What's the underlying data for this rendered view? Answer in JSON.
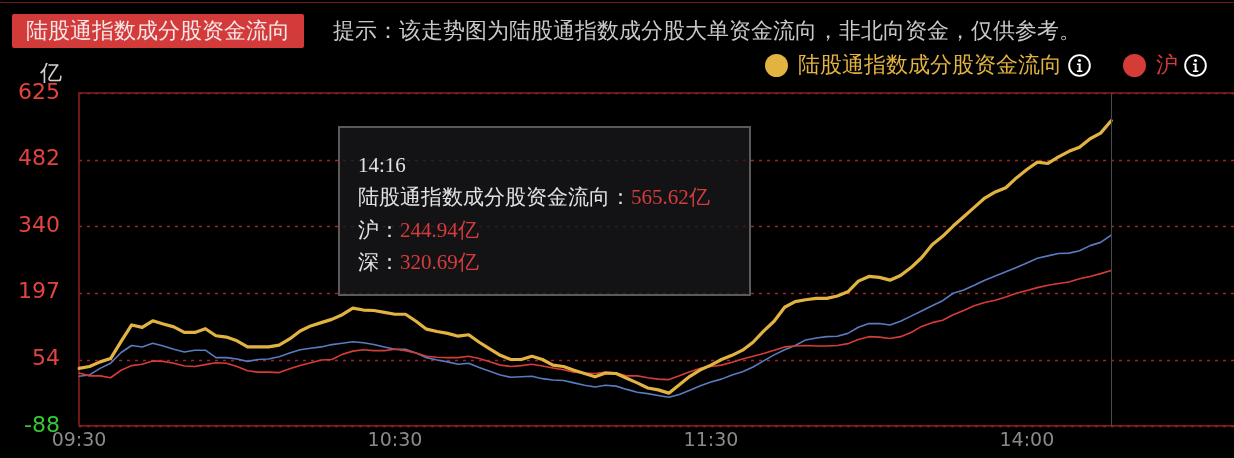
{
  "chart_data": {
    "type": "line",
    "title": "陆股通指数成分股资金流向",
    "subtitle": "提示：该走势图为陆股通指数成分股大单资金流向，非北向资金，仅供参考。",
    "ylabel": "亿",
    "categories": [
      "09:30",
      null,
      null,
      null,
      null,
      null,
      null,
      null,
      null,
      null,
      null,
      null,
      null,
      null,
      null,
      null,
      null,
      null,
      null,
      null,
      null,
      null,
      null,
      null,
      null,
      null,
      null,
      null,
      null,
      null,
      "10:30",
      null,
      null,
      null,
      null,
      null,
      null,
      null,
      null,
      null,
      null,
      null,
      null,
      null,
      null,
      null,
      null,
      null,
      null,
      null,
      null,
      null,
      null,
      null,
      null,
      null,
      null,
      null,
      null,
      null,
      "11:30",
      null,
      null,
      null,
      null,
      null,
      null,
      null,
      null,
      null,
      null,
      null,
      null,
      null,
      null,
      null,
      null,
      null,
      null,
      null,
      null,
      null,
      null,
      null,
      null,
      null,
      null,
      null,
      null,
      null,
      "14:00",
      null,
      null,
      null,
      null,
      null,
      null,
      null,
      null,
      null,
      null,
      null,
      null,
      null,
      null,
      null,
      null,
      null,
      null,
      null
    ],
    "ylim": [
      -88,
      625
    ],
    "yticks": [
      -88,
      54,
      197,
      340,
      482,
      625
    ],
    "grid": "y",
    "legend": "top right",
    "annotations": [
      "14:16",
      "陆股通指数成分股资金流向：",
      "565.62亿",
      "沪：",
      "244.94亿",
      "深：",
      "320.69亿"
    ],
    "series": [
      {
        "name": "陆股通指数成分股资金流向",
        "color": "#e3b341",
        "values": [
          35,
          39,
          49,
          56,
          93,
          128,
          123,
          137,
          130,
          124,
          112,
          112,
          120,
          105,
          102,
          94,
          81,
          81,
          81,
          85,
          98,
          115,
          126,
          133,
          140,
          150,
          164,
          160,
          159,
          155,
          151,
          151,
          136,
          119,
          114,
          110,
          104,
          107,
          91,
          77,
          63,
          54,
          54,
          61,
          54,
          42,
          39,
          31,
          24,
          17,
          25,
          24,
          14,
          4,
          -7,
          -11,
          -18,
          0,
          18,
          32,
          42,
          54,
          63,
          74,
          91,
          115,
          136,
          166,
          178,
          182,
          185,
          185,
          190,
          199,
          222,
          232,
          230,
          224,
          234,
          251,
          272,
          300,
          318,
          340,
          360,
          380,
          400,
          413,
          422,
          443,
          461,
          477,
          474,
          488,
          500,
          509,
          527,
          539,
          565.62,
          null,
          null,
          null,
          null,
          null,
          null,
          null,
          null,
          null,
          null,
          null
        ]
      },
      {
        "name": "沪",
        "color": "#d63c37",
        "values": [
          25,
          19,
          19,
          15,
          31,
          41,
          44,
          51,
          50,
          46,
          40,
          39,
          43,
          47,
          46,
          39,
          30,
          27,
          27,
          26,
          34,
          41,
          47,
          53,
          54,
          65,
          72,
          75,
          73,
          73,
          76,
          73,
          68,
          61,
          59,
          58,
          58,
          61,
          56,
          49,
          42,
          39,
          41,
          44,
          40,
          36,
          32,
          27,
          25,
          24,
          27,
          25,
          19,
          19,
          15,
          12,
          11,
          19,
          28,
          35,
          39,
          42,
          48,
          55,
          61,
          67,
          74,
          81,
          83,
          84,
          83,
          83,
          84,
          88,
          97,
          103,
          102,
          99,
          103,
          112,
          125,
          133,
          138,
          150,
          159,
          169,
          176,
          181,
          188,
          196,
          202,
          208,
          213,
          217,
          220,
          227,
          232,
          238,
          244.94,
          null,
          null,
          null,
          null,
          null,
          null,
          null,
          null,
          null,
          null,
          null
        ]
      },
      {
        "color": "#5a7bbf",
        "values": [
          18,
          21,
          35,
          46,
          69,
          84,
          81,
          89,
          83,
          76,
          70,
          74,
          74,
          58,
          58,
          55,
          50,
          54,
          55,
          60,
          68,
          75,
          78,
          81,
          86,
          89,
          92,
          90,
          86,
          81,
          76,
          76,
          68,
          58,
          53,
          49,
          44,
          46,
          37,
          29,
          21,
          16,
          17,
          18,
          13,
          10,
          9,
          4,
          -1,
          -5,
          -1,
          -3,
          -10,
          -16,
          -19,
          -23,
          -27,
          -21,
          -12,
          -2,
          6,
          12,
          21,
          28,
          38,
          51,
          64,
          75,
          84,
          96,
          100,
          103,
          104,
          110,
          123,
          131,
          131,
          128,
          136,
          147,
          158,
          169,
          180,
          196,
          203,
          213,
          224,
          233,
          242,
          251,
          261,
          271,
          276,
          281,
          282,
          287,
          298,
          305,
          320.69,
          null,
          null,
          null,
          null,
          null,
          null,
          null,
          null,
          null,
          null,
          null
        ]
      }
    ]
  }
}
